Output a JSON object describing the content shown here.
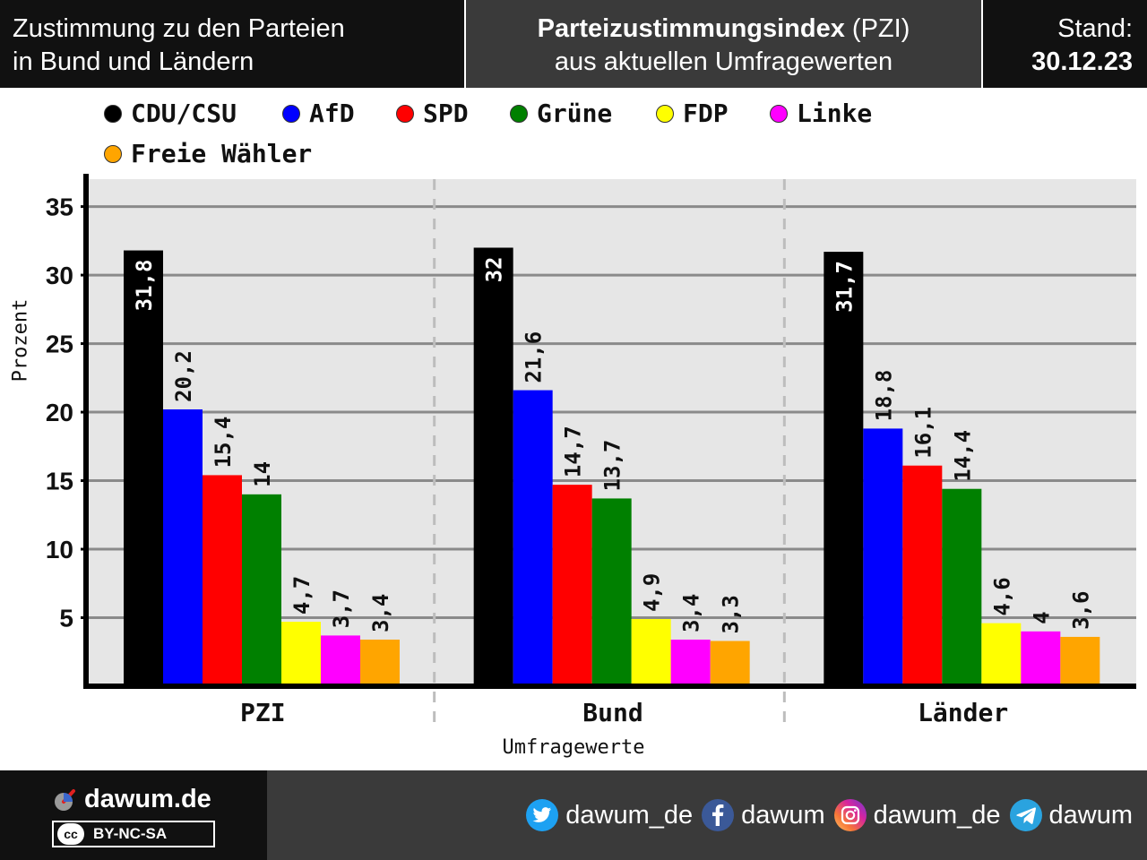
{
  "header": {
    "left_line1": "Zustimmung zu den Parteien",
    "left_line2": "in Bund und Ländern",
    "mid_bold": "Parteizustimmungsindex",
    "mid_rest": " (PZI)",
    "mid_line2": "aus aktuellen Umfragewerten",
    "right_label": "Stand:",
    "right_date": "30.12.23"
  },
  "legend": [
    {
      "name": "CDU/CSU",
      "color": "#000000"
    },
    {
      "name": "AfD",
      "color": "#0000ff"
    },
    {
      "name": "SPD",
      "color": "#ff0000"
    },
    {
      "name": "Grüne",
      "color": "#008000"
    },
    {
      "name": "FDP",
      "color": "#ffff00"
    },
    {
      "name": "Linke",
      "color": "#ff00ff"
    },
    {
      "name": "Freie Wähler",
      "color": "#ffa500"
    }
  ],
  "chart_data": {
    "type": "bar",
    "categories": [
      "PZI",
      "Bund",
      "Länder"
    ],
    "xlabel": "Umfragewerte",
    "ylabel": "Prozent",
    "ylim": [
      0,
      37
    ],
    "yticks": [
      5,
      10,
      15,
      20,
      25,
      30,
      35
    ],
    "grid": true,
    "legend_position": "top",
    "series": [
      {
        "name": "CDU/CSU",
        "color": "#000000",
        "values": [
          31.8,
          32,
          31.7
        ],
        "labels": [
          "31,8",
          "32",
          "31,7"
        ]
      },
      {
        "name": "AfD",
        "color": "#0000ff",
        "values": [
          20.2,
          21.6,
          18.8
        ],
        "labels": [
          "20,2",
          "21,6",
          "18,8"
        ]
      },
      {
        "name": "SPD",
        "color": "#ff0000",
        "values": [
          15.4,
          14.7,
          16.1
        ],
        "labels": [
          "15,4",
          "14,7",
          "16,1"
        ]
      },
      {
        "name": "Grüne",
        "color": "#008000",
        "values": [
          14,
          13.7,
          14.4
        ],
        "labels": [
          "14",
          "13,7",
          "14,4"
        ]
      },
      {
        "name": "FDP",
        "color": "#ffff00",
        "values": [
          4.7,
          4.9,
          4.6
        ],
        "labels": [
          "4,7",
          "4,9",
          "4,6"
        ]
      },
      {
        "name": "Linke",
        "color": "#ff00ff",
        "values": [
          3.7,
          3.4,
          4
        ],
        "labels": [
          "3,7",
          "3,4",
          "4"
        ]
      },
      {
        "name": "Freie Wähler",
        "color": "#ffa500",
        "values": [
          3.4,
          3.3,
          3.6
        ],
        "labels": [
          "3,4",
          "3,3",
          "3,6"
        ]
      }
    ]
  },
  "footer": {
    "brand": "dawum.de",
    "license": "BY-NC-SA",
    "cc": "cc",
    "socials": [
      {
        "icon": "twitter-icon",
        "handle": "dawum_de",
        "color": "#1da1f2"
      },
      {
        "icon": "facebook-icon",
        "handle": "dawum",
        "color": "#3b5998"
      },
      {
        "icon": "instagram-icon",
        "handle": "dawum_de",
        "color": "#d6249f"
      },
      {
        "icon": "telegram-icon",
        "handle": "dawum",
        "color": "#2aa3df"
      }
    ]
  }
}
